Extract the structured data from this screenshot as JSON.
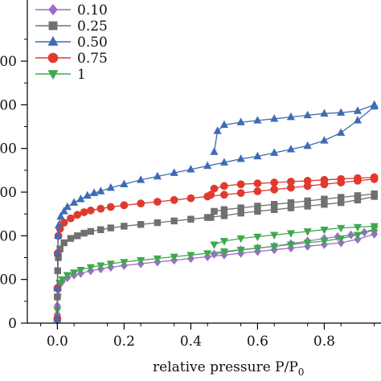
{
  "chart_data": {
    "type": "line",
    "xlabel": "relative pressure P/P",
    "xlabel_sub": "0",
    "xlim": [
      -0.09,
      0.97
    ],
    "ylim": [
      0,
      370
    ],
    "x_ticks": [
      {
        "value": 0.0,
        "label": "0.0"
      },
      {
        "value": 0.2,
        "label": "0.2"
      },
      {
        "value": 0.4,
        "label": "0.4"
      },
      {
        "value": 0.6,
        "label": "0.6"
      },
      {
        "value": 0.8,
        "label": "0.8"
      }
    ],
    "y_ticks": [
      {
        "value": 0,
        "label": "0"
      },
      {
        "value": 50,
        "label": "00"
      },
      {
        "value": 100,
        "label": "00"
      },
      {
        "value": 150,
        "label": "00"
      },
      {
        "value": 200,
        "label": "00"
      },
      {
        "value": 250,
        "label": "00"
      },
      {
        "value": 300,
        "label": "00"
      }
    ],
    "legend_position": "top-left",
    "series": [
      {
        "name": "0.10",
        "color": "#9b6fc4",
        "marker": "diamond",
        "adsorption": [
          [
            0.0,
            3
          ],
          [
            0.0,
            10
          ],
          [
            0.0,
            20
          ],
          [
            0.001,
            30
          ],
          [
            0.003,
            38
          ],
          [
            0.007,
            44
          ],
          [
            0.015,
            48
          ],
          [
            0.03,
            52
          ],
          [
            0.05,
            55
          ],
          [
            0.07,
            57
          ],
          [
            0.1,
            60
          ],
          [
            0.13,
            62
          ],
          [
            0.16,
            64
          ],
          [
            0.2,
            66
          ],
          [
            0.25,
            68
          ],
          [
            0.3,
            70
          ],
          [
            0.35,
            72
          ],
          [
            0.4,
            74
          ],
          [
            0.45,
            76
          ],
          [
            0.5,
            78
          ],
          [
            0.55,
            80
          ],
          [
            0.6,
            82
          ],
          [
            0.65,
            84
          ],
          [
            0.7,
            86
          ],
          [
            0.75,
            88
          ],
          [
            0.8,
            90
          ],
          [
            0.85,
            92
          ],
          [
            0.9,
            96
          ],
          [
            0.95,
            102
          ]
        ],
        "desorption": [
          [
            0.95,
            106
          ],
          [
            0.92,
            104
          ],
          [
            0.88,
            101
          ],
          [
            0.84,
            99
          ],
          [
            0.8,
            97
          ],
          [
            0.75,
            94
          ],
          [
            0.7,
            91
          ],
          [
            0.65,
            88
          ],
          [
            0.6,
            86
          ],
          [
            0.55,
            84
          ],
          [
            0.5,
            81
          ],
          [
            0.47,
            79
          ]
        ]
      },
      {
        "name": "0.25",
        "color": "#707070",
        "marker": "square",
        "adsorption": [
          [
            0.0,
            5
          ],
          [
            0.0,
            30
          ],
          [
            0.001,
            60
          ],
          [
            0.003,
            75
          ],
          [
            0.008,
            85
          ],
          [
            0.02,
            92
          ],
          [
            0.04,
            97
          ],
          [
            0.06,
            100
          ],
          [
            0.08,
            103
          ],
          [
            0.1,
            105
          ],
          [
            0.13,
            107
          ],
          [
            0.16,
            109
          ],
          [
            0.2,
            111
          ],
          [
            0.25,
            113
          ],
          [
            0.3,
            115
          ],
          [
            0.35,
            117
          ],
          [
            0.4,
            119
          ],
          [
            0.45,
            121
          ],
          [
            0.5,
            123
          ],
          [
            0.55,
            126
          ],
          [
            0.6,
            128
          ],
          [
            0.65,
            130
          ],
          [
            0.7,
            132
          ],
          [
            0.75,
            134
          ],
          [
            0.8,
            136
          ],
          [
            0.85,
            138
          ],
          [
            0.9,
            141
          ],
          [
            0.95,
            145
          ]
        ],
        "desorption": [
          [
            0.95,
            148
          ],
          [
            0.9,
            146
          ],
          [
            0.85,
            144
          ],
          [
            0.8,
            142
          ],
          [
            0.75,
            140
          ],
          [
            0.7,
            138
          ],
          [
            0.65,
            136
          ],
          [
            0.6,
            134
          ],
          [
            0.55,
            132
          ],
          [
            0.5,
            130
          ],
          [
            0.47,
            128
          ],
          [
            0.46,
            121
          ]
        ]
      },
      {
        "name": "0.50",
        "color": "#3d6cb5",
        "marker": "triangle-up",
        "adsorption": [
          [
            0.0,
            5
          ],
          [
            0.0,
            40
          ],
          [
            0.001,
            80
          ],
          [
            0.002,
            100
          ],
          [
            0.004,
            112
          ],
          [
            0.01,
            122
          ],
          [
            0.02,
            128
          ],
          [
            0.03,
            133
          ],
          [
            0.05,
            138
          ],
          [
            0.07,
            142
          ],
          [
            0.09,
            146
          ],
          [
            0.11,
            149
          ],
          [
            0.13,
            151
          ],
          [
            0.16,
            155
          ],
          [
            0.2,
            159
          ],
          [
            0.25,
            164
          ],
          [
            0.3,
            168
          ],
          [
            0.35,
            172
          ],
          [
            0.4,
            176
          ],
          [
            0.45,
            180
          ],
          [
            0.5,
            184
          ],
          [
            0.55,
            188
          ],
          [
            0.6,
            191
          ],
          [
            0.65,
            195
          ],
          [
            0.7,
            199
          ],
          [
            0.75,
            203
          ],
          [
            0.8,
            209
          ],
          [
            0.85,
            218
          ],
          [
            0.9,
            232
          ],
          [
            0.95,
            248
          ]
        ],
        "desorption": [
          [
            0.95,
            250
          ],
          [
            0.9,
            243
          ],
          [
            0.85,
            241
          ],
          [
            0.8,
            240
          ],
          [
            0.75,
            238
          ],
          [
            0.7,
            236
          ],
          [
            0.65,
            234
          ],
          [
            0.6,
            232
          ],
          [
            0.55,
            230
          ],
          [
            0.5,
            227
          ],
          [
            0.48,
            220
          ],
          [
            0.47,
            196
          ]
        ]
      },
      {
        "name": "0.75",
        "color": "#e03a2e",
        "marker": "circle",
        "adsorption": [
          [
            0.0,
            5
          ],
          [
            0.0,
            40
          ],
          [
            0.001,
            80
          ],
          [
            0.003,
            100
          ],
          [
            0.008,
            108
          ],
          [
            0.02,
            115
          ],
          [
            0.04,
            120
          ],
          [
            0.06,
            124
          ],
          [
            0.08,
            127
          ],
          [
            0.1,
            129
          ],
          [
            0.13,
            131
          ],
          [
            0.16,
            133
          ],
          [
            0.2,
            135
          ],
          [
            0.25,
            137
          ],
          [
            0.3,
            139
          ],
          [
            0.35,
            141
          ],
          [
            0.4,
            143
          ],
          [
            0.45,
            145
          ],
          [
            0.5,
            147
          ],
          [
            0.55,
            149
          ],
          [
            0.6,
            151
          ],
          [
            0.65,
            153
          ],
          [
            0.7,
            155
          ],
          [
            0.75,
            157
          ],
          [
            0.8,
            159
          ],
          [
            0.85,
            161
          ],
          [
            0.9,
            163
          ],
          [
            0.95,
            165
          ]
        ],
        "desorption": [
          [
            0.95,
            167
          ],
          [
            0.9,
            166
          ],
          [
            0.85,
            165
          ],
          [
            0.8,
            164
          ],
          [
            0.75,
            163
          ],
          [
            0.7,
            162
          ],
          [
            0.65,
            161
          ],
          [
            0.6,
            160
          ],
          [
            0.55,
            159
          ],
          [
            0.5,
            157
          ],
          [
            0.47,
            154
          ],
          [
            0.46,
            147
          ]
        ]
      },
      {
        "name": "1",
        "color": "#3fa84f",
        "marker": "triangle-down",
        "adsorption": [
          [
            0.0,
            3
          ],
          [
            0.0,
            15
          ],
          [
            0.001,
            30
          ],
          [
            0.003,
            40
          ],
          [
            0.007,
            46
          ],
          [
            0.015,
            50
          ],
          [
            0.03,
            55
          ],
          [
            0.05,
            58
          ],
          [
            0.07,
            61
          ],
          [
            0.1,
            64
          ],
          [
            0.13,
            66
          ],
          [
            0.16,
            68
          ],
          [
            0.2,
            70
          ],
          [
            0.25,
            72
          ],
          [
            0.3,
            74
          ],
          [
            0.35,
            76
          ],
          [
            0.4,
            78
          ],
          [
            0.45,
            80
          ],
          [
            0.5,
            82
          ],
          [
            0.55,
            84
          ],
          [
            0.6,
            86
          ],
          [
            0.65,
            88
          ],
          [
            0.7,
            90
          ],
          [
            0.75,
            92
          ],
          [
            0.8,
            94
          ],
          [
            0.85,
            97
          ],
          [
            0.9,
            101
          ],
          [
            0.95,
            108
          ]
        ],
        "desorption": [
          [
            0.95,
            111
          ],
          [
            0.9,
            110
          ],
          [
            0.85,
            109
          ],
          [
            0.8,
            107
          ],
          [
            0.75,
            105
          ],
          [
            0.7,
            103
          ],
          [
            0.65,
            101
          ],
          [
            0.6,
            99
          ],
          [
            0.55,
            97
          ],
          [
            0.5,
            94
          ],
          [
            0.47,
            90
          ]
        ]
      }
    ]
  }
}
